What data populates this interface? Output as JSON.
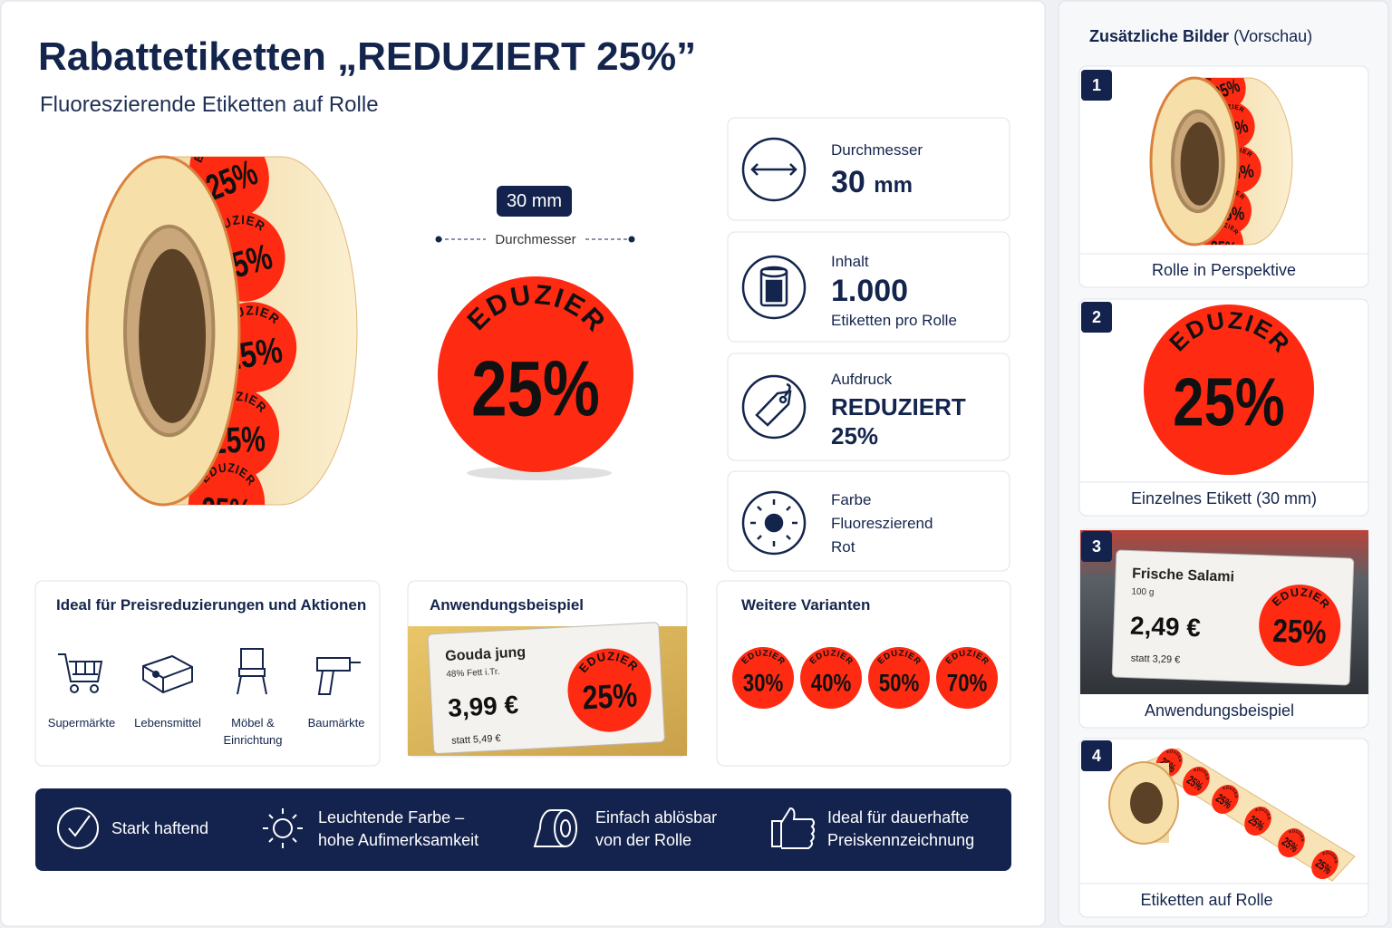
{
  "header": {
    "title": "Rabattetiketten „REDUZIERT 25%”",
    "subtitle": "Fluoreszierende Etiketten auf Rolle"
  },
  "sticker": {
    "top": "REDUZIERT",
    "value": "25%"
  },
  "dimension": {
    "value": "30 mm",
    "label": "Durchmesser"
  },
  "specs": [
    {
      "label": "Durchmesser",
      "value": "30",
      "unit": "mm"
    },
    {
      "label": "Inhalt",
      "value": "1.000",
      "note": "Etiketten pro Rolle"
    },
    {
      "label": "Aufdruck",
      "lines": [
        "REDUZIERT",
        "25%"
      ]
    },
    {
      "label": "Farbe",
      "lines": [
        "Fluoreszierend",
        "Rot"
      ]
    }
  ],
  "usage": {
    "title": "Ideal für Preisreduzierungen und Aktionen",
    "items": [
      "Supermärkte",
      "Lebensmittel",
      "Möbel & Einrichtung",
      "Baumärkte"
    ]
  },
  "example": {
    "title": "Anwendungsbeispiel",
    "product": "Gouda jung",
    "detail": "48% Fett i.Tr.",
    "price": "3,99 €",
    "old_price": "statt 5,49 €"
  },
  "variants": {
    "title": "Weitere Varianten",
    "values": [
      "30%",
      "40%",
      "50%",
      "70%"
    ]
  },
  "features": [
    "Stark haftend",
    "Leuchtende Farbe – hohe Aufimerksamkeit",
    "Einfach ablösbar von der Rolle",
    "Ideal für dauerhafte Preiskennzeichnung"
  ],
  "sidebar": {
    "title": "Zusätzliche Bilder",
    "note": "(Vorschau)",
    "items": [
      {
        "number": "1",
        "caption": "Rolle in Perspektive"
      },
      {
        "number": "2",
        "caption": "Einzelnes Etikett (30 mm)"
      },
      {
        "number": "3",
        "caption": "Anwendungsbeispiel"
      },
      {
        "number": "4",
        "caption": "Etiketten auf Rolle"
      }
    ],
    "example": {
      "product": "Frische Salami",
      "detail": "100 g",
      "price": "2,49 €",
      "old_price": "statt 3,29 €"
    }
  }
}
